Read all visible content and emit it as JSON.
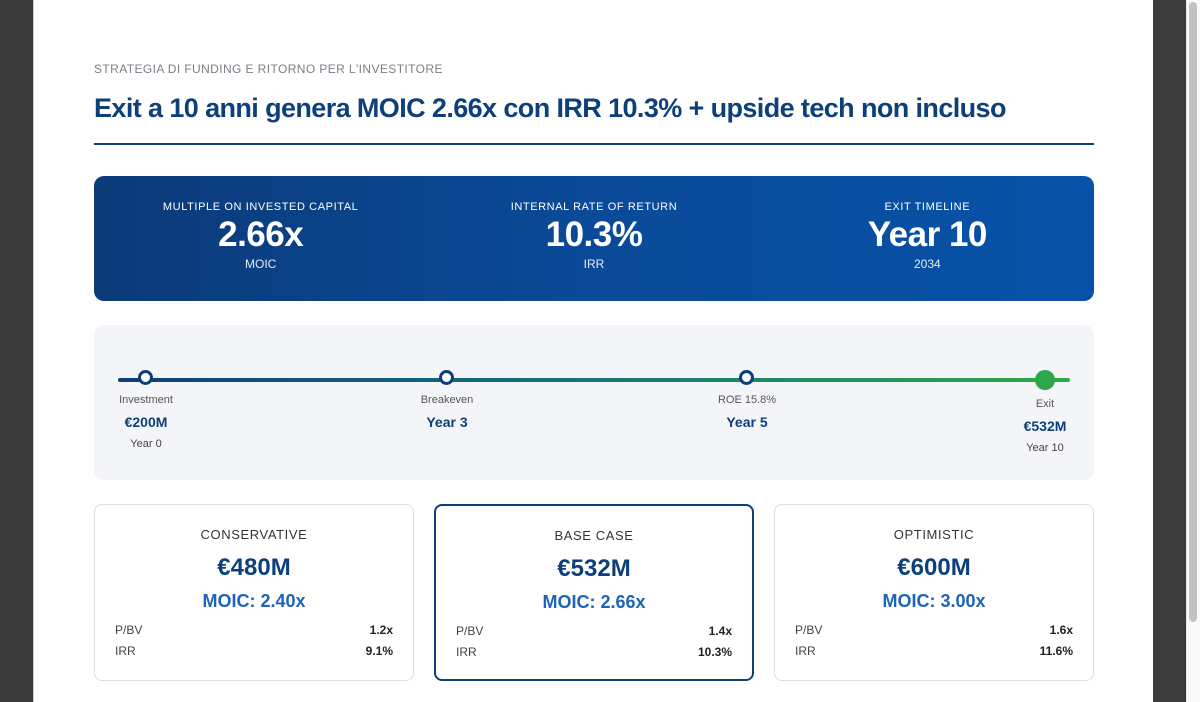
{
  "header": {
    "kicker": "STRATEGIA DI FUNDING E RITORNO PER L'INVESTITORE",
    "title": "Exit a 10 anni genera MOIC 2.66x con IRR 10.3% + upside tech non incluso"
  },
  "kpis": [
    {
      "label": "MULTIPLE ON INVESTED CAPITAL",
      "value": "2.66x",
      "sub": "MOIC"
    },
    {
      "label": "INTERNAL RATE OF RETURN",
      "value": "10.3%",
      "sub": "IRR"
    },
    {
      "label": "EXIT TIMELINE",
      "value": "Year 10",
      "sub": "2034"
    }
  ],
  "timeline": {
    "milestones": [
      {
        "label": "Investment",
        "value": "€200M",
        "year": "Year 0"
      },
      {
        "label": "Breakeven",
        "value": "Year 3"
      },
      {
        "label": "ROE 15.8%",
        "value": "Year 5"
      },
      {
        "label": "Exit",
        "value": "€532M",
        "year": "Year 10"
      }
    ]
  },
  "scenarios": [
    {
      "title": "CONSERVATIVE",
      "value": "€480M",
      "moic": "MOIC: 2.40x",
      "rows": [
        {
          "k": "P/BV",
          "v": "1.2x"
        },
        {
          "k": "IRR",
          "v": "9.1%"
        }
      ]
    },
    {
      "title": "BASE CASE",
      "value": "€532M",
      "moic": "MOIC: 2.66x",
      "rows": [
        {
          "k": "P/BV",
          "v": "1.4x"
        },
        {
          "k": "IRR",
          "v": "10.3%"
        }
      ]
    },
    {
      "title": "OPTIMISTIC",
      "value": "€600M",
      "moic": "MOIC: 3.00x",
      "rows": [
        {
          "k": "P/BV",
          "v": "1.6x"
        },
        {
          "k": "IRR",
          "v": "11.6%"
        }
      ]
    }
  ],
  "colors": {
    "navy": "#0d3f7a",
    "accent_blue": "#1d63b8",
    "exit_green": "#2ca84a"
  }
}
